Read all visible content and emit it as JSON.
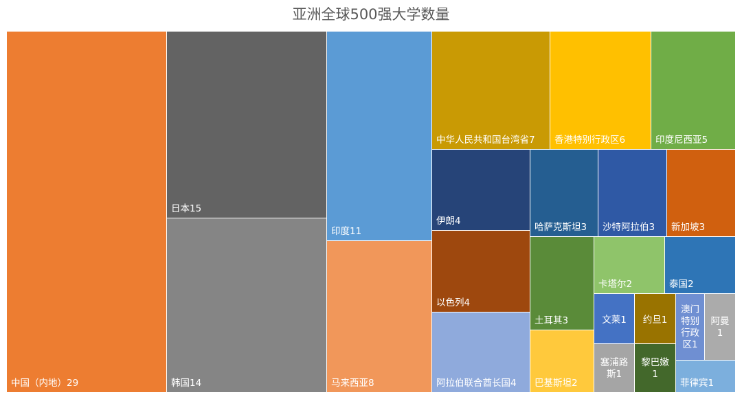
{
  "chart_data": {
    "type": "treemap",
    "title": "亚洲全球500强大学数量",
    "items": [
      {
        "name": "中国（内地）",
        "value": 29,
        "label": "中国（内地）29",
        "color": "#ED7D31"
      },
      {
        "name": "日本",
        "value": 15,
        "label": "日本15",
        "color": "#636363"
      },
      {
        "name": "韩国",
        "value": 14,
        "label": "韩国14",
        "color": "#858585"
      },
      {
        "name": "印度",
        "value": 11,
        "label": "印度11",
        "color": "#5B9BD5"
      },
      {
        "name": "马来西亚",
        "value": 8,
        "label": "马来西亚8",
        "color": "#F1975A"
      },
      {
        "name": "中华人民共和国台湾省",
        "value": 7,
        "label": "中华人民共和国台湾省7",
        "color": "#C99A04"
      },
      {
        "name": "香港特别行政区",
        "value": 6,
        "label": "香港特别行政区6",
        "color": "#FFC000"
      },
      {
        "name": "印度尼西亚",
        "value": 5,
        "label": "印度尼西亚5",
        "color": "#70AD47"
      },
      {
        "name": "伊朗",
        "value": 4,
        "label": "伊朗4",
        "color": "#264478"
      },
      {
        "name": "以色列",
        "value": 4,
        "label": "以色列4",
        "color": "#9E480E"
      },
      {
        "name": "阿拉伯联合酋长国",
        "value": 4,
        "label": "阿拉伯联合酋长国4",
        "color": "#8FAADC"
      },
      {
        "name": "哈萨克斯坦",
        "value": 3,
        "label": "哈萨克斯坦3",
        "color": "#255E91"
      },
      {
        "name": "沙特阿拉伯",
        "value": 3,
        "label": "沙特阿拉伯3",
        "color": "#2F59A5"
      },
      {
        "name": "新加坡",
        "value": 3,
        "label": "新加坡3",
        "color": "#D0600F"
      },
      {
        "name": "土耳其",
        "value": 3,
        "label": "土耳其3",
        "color": "#5A8B39"
      },
      {
        "name": "卡塔尔",
        "value": 2,
        "label": "卡塔尔2",
        "color": "#8FC46A"
      },
      {
        "name": "泰国",
        "value": 2,
        "label": "泰国2",
        "color": "#2E75B6"
      },
      {
        "name": "巴基斯坦",
        "value": 2,
        "label": "巴基斯坦2",
        "color": "#FFC93C"
      },
      {
        "name": "文莱",
        "value": 1,
        "label": "文莱1",
        "color": "#4472C4"
      },
      {
        "name": "约旦",
        "value": 1,
        "label": "约旦1",
        "color": "#997300"
      },
      {
        "name": "澳门特别行政区",
        "value": 1,
        "label": "澳门特别行政区1",
        "color": "#6F8FD2"
      },
      {
        "name": "阿曼",
        "value": 1,
        "label": "阿曼1",
        "color": "#ABABAB"
      },
      {
        "name": "塞浦路斯",
        "value": 1,
        "label": "塞浦路斯1",
        "color": "#A5A5A5"
      },
      {
        "name": "黎巴嫩",
        "value": 1,
        "label": "黎巴嫩1",
        "color": "#43682B"
      },
      {
        "name": "菲律宾",
        "value": 1,
        "label": "菲律宾1",
        "color": "#7CAFDD"
      }
    ]
  }
}
